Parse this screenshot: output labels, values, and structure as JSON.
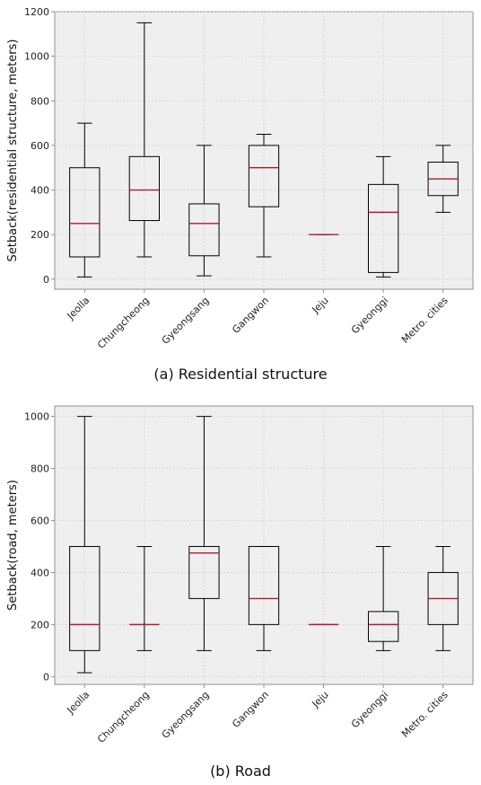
{
  "chart_data": [
    {
      "type": "box",
      "caption": "(a) Residential structure",
      "ylabel": "Setback(residential structure, meters)",
      "xlabel": "",
      "ylim": [
        -45,
        1200
      ],
      "yticks": [
        0,
        200,
        400,
        600,
        800,
        1000,
        1200
      ],
      "grid": true,
      "legend": "none",
      "categories": [
        "Jeolla",
        "Chungcheong",
        "Gyeongsang",
        "Gangwon",
        "Jeju",
        "Gyeonggi",
        "Metro. cities"
      ],
      "boxes": [
        {
          "category": "Jeolla",
          "min": 10,
          "q1": 100,
          "median": 250,
          "q3": 500,
          "max": 700
        },
        {
          "category": "Chungcheong",
          "min": 100,
          "q1": 263,
          "median": 400,
          "q3": 550,
          "max": 1150
        },
        {
          "category": "Gyeongsang",
          "min": 15,
          "q1": 105,
          "median": 250,
          "q3": 338,
          "max": 600
        },
        {
          "category": "Gangwon",
          "min": 100,
          "q1": 325,
          "median": 500,
          "q3": 600,
          "max": 650
        },
        {
          "category": "Jeju",
          "min": 200,
          "q1": 200,
          "median": 200,
          "q3": 200,
          "max": 200
        },
        {
          "category": "Gyeonggi",
          "min": 10,
          "q1": 30,
          "median": 300,
          "q3": 425,
          "max": 550
        },
        {
          "category": "Metro. cities",
          "min": 300,
          "q1": 375,
          "median": 450,
          "q3": 525,
          "max": 600
        }
      ]
    },
    {
      "type": "box",
      "caption": "(b) Road",
      "ylabel": "Setback(road, meters)",
      "xlabel": "",
      "ylim": [
        -30,
        1040
      ],
      "yticks": [
        0,
        200,
        400,
        600,
        800,
        1000
      ],
      "grid": true,
      "legend": "none",
      "categories": [
        "Jeolla",
        "Chungcheong",
        "Gyeongsang",
        "Gangwon",
        "Jeju",
        "Gyeonggi",
        "Metro. cities"
      ],
      "boxes": [
        {
          "category": "Jeolla",
          "min": 15,
          "q1": 100,
          "median": 200,
          "q3": 500,
          "max": 1000
        },
        {
          "category": "Chungcheong",
          "min": 100,
          "q1": 200,
          "median": 200,
          "q3": 200,
          "max": 500
        },
        {
          "category": "Gyeongsang",
          "min": 100,
          "q1": 300,
          "median": 475,
          "q3": 500,
          "max": 1000
        },
        {
          "category": "Gangwon",
          "min": 100,
          "q1": 200,
          "median": 300,
          "q3": 500,
          "max": 500
        },
        {
          "category": "Jeju",
          "min": 200,
          "q1": 200,
          "median": 200,
          "q3": 200,
          "max": 200
        },
        {
          "category": "Gyeonggi",
          "min": 100,
          "q1": 135,
          "median": 200,
          "q3": 250,
          "max": 500
        },
        {
          "category": "Metro. cities",
          "min": 100,
          "q1": 200,
          "median": 300,
          "q3": 400,
          "max": 500
        }
      ]
    }
  ],
  "colors": {
    "plot_background": "#efefef",
    "grid": "#d0d0d0",
    "box_stroke": "#000000",
    "median": "#b2182b",
    "axis": "#777777"
  }
}
